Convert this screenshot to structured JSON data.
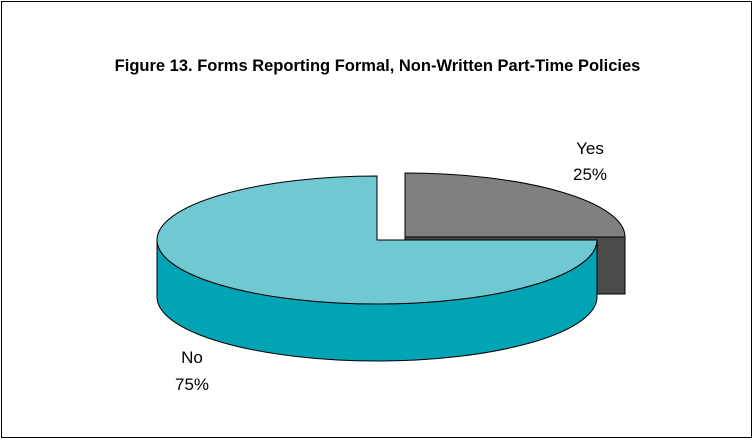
{
  "chart_data": {
    "type": "pie",
    "title": "Figure 13.  Forms Reporting Formal, Non-Written Part-Time Policies",
    "three_d": true,
    "exploded": true,
    "categories": [
      "Yes",
      "No"
    ],
    "values": [
      25,
      75
    ],
    "value_labels": [
      "25%",
      "75%"
    ],
    "legend": "none",
    "colors": {
      "Yes": {
        "top": "#808080",
        "side": "#4a4a4a"
      },
      "No": {
        "top": "#70c8d2",
        "side": "#00a4b4"
      }
    }
  }
}
